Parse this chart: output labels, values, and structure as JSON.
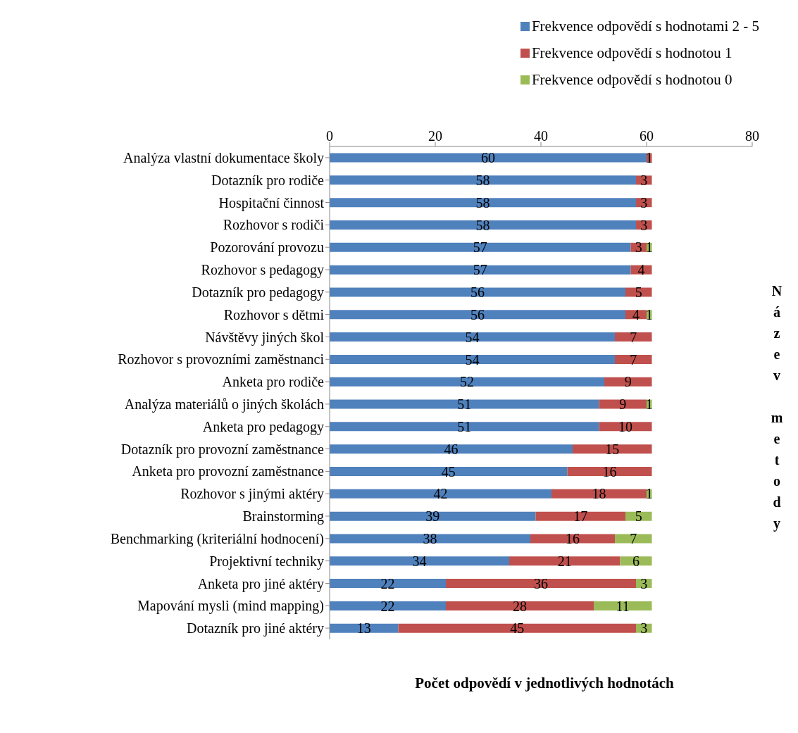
{
  "chart_data": {
    "type": "bar",
    "orientation": "horizontal",
    "stacked": true,
    "xlabel": "Počet odpovědí v jednotlivých hodnotách",
    "ylabel": "Název metody",
    "categories": [
      "Analýza vlastní dokumentace školy",
      "Dotazník pro rodiče",
      "Hospitační činnost",
      "Rozhovor s rodiči",
      "Pozorování provozu ",
      "Rozhovor s pedagogy",
      "Dotazník pro pedagogy",
      "Rozhovor s dětmi",
      "Návštěvy jiných škol",
      "Rozhovor s provozními zaměstnanci",
      "Anketa pro rodiče",
      "Analýza materiálů o jiných školách",
      "Anketa pro pedagogy",
      "Dotazník pro provozní zaměstnance",
      "Anketa pro provozní zaměstnance",
      "Rozhovor s jinými aktéry",
      "Brainstorming",
      "Benchmarking (kriteriální hodnocení)",
      "Projektivní techniky",
      "Anketa pro jiné aktéry",
      "Mapování mysli (mind mapping)",
      "Dotazník pro jiné aktéry"
    ],
    "series": [
      {
        "name": "Frekvence odpovědí s hodnotami 2 - 5",
        "color": "#4f81bd",
        "values": [
          60,
          58,
          58,
          58,
          57,
          57,
          56,
          56,
          54,
          54,
          52,
          51,
          51,
          46,
          45,
          42,
          39,
          38,
          34,
          22,
          22,
          13
        ]
      },
      {
        "name": "Frekvence odpovědí s hodnotou 1",
        "color": "#c0504d",
        "values": [
          1,
          3,
          3,
          3,
          3,
          4,
          5,
          4,
          7,
          7,
          9,
          9,
          10,
          15,
          16,
          18,
          17,
          16,
          21,
          36,
          28,
          45
        ]
      },
      {
        "name": "Frekvence odpovědí s hodnotou 0",
        "color": "#9bbb59",
        "values": [
          null,
          null,
          null,
          null,
          1,
          null,
          null,
          1,
          null,
          null,
          null,
          1,
          null,
          null,
          null,
          1,
          5,
          7,
          6,
          3,
          11,
          3
        ]
      }
    ],
    "xlim": [
      0,
      80
    ],
    "xticks": [
      0,
      20,
      40,
      60,
      80
    ],
    "data_labels": true,
    "grid": false,
    "legend": "top right"
  }
}
